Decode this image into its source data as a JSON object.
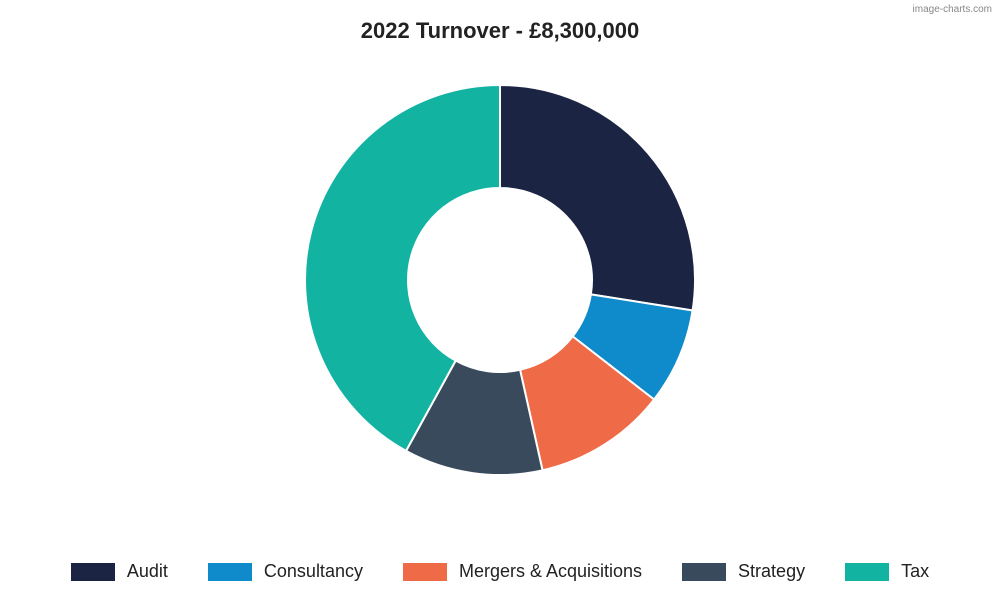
{
  "watermark": "image-charts.com",
  "chart": {
    "type": "donut",
    "title": "2022 Turnover - £8,300,000",
    "title_fontsize": 22,
    "title_fontweight": 700,
    "background_color": "#ffffff",
    "outer_radius": 195,
    "inner_radius": 92,
    "stroke_color": "#ffffff",
    "stroke_width": 2,
    "start_angle_deg": 0,
    "slices": [
      {
        "label": "Audit",
        "value": 27.5,
        "color": "#1c2444"
      },
      {
        "label": "Consultancy",
        "value": 8.0,
        "color": "#0f8acb"
      },
      {
        "label": "Mergers & Acquisitions",
        "value": 11.0,
        "color": "#ef6a47"
      },
      {
        "label": "Strategy",
        "value": 11.5,
        "color": "#3a4a5d"
      },
      {
        "label": "Tax",
        "value": 42.0,
        "color": "#13b3a2"
      }
    ],
    "legend": {
      "swatch_width": 44,
      "swatch_height": 18,
      "label_fontsize": 18,
      "label_color": "#222222"
    }
  }
}
